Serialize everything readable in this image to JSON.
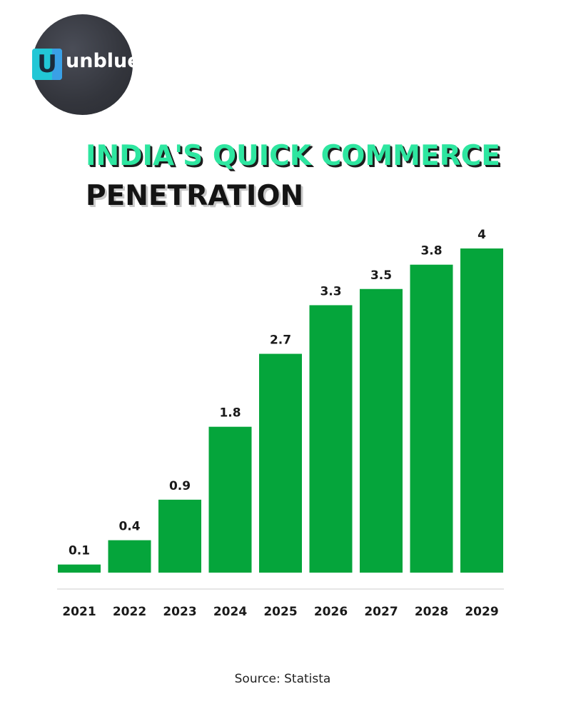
{
  "logo": {
    "mark_letter": "U",
    "text": "unblue"
  },
  "chart_data": {
    "type": "bar",
    "title_line1": "INDIA'S QUICK COMMERCE",
    "title_line2": "PENETRATION",
    "categories": [
      "2021",
      "2022",
      "2023",
      "2024",
      "2025",
      "2026",
      "2027",
      "2028",
      "2029"
    ],
    "values": [
      0.1,
      0.4,
      0.9,
      1.8,
      2.7,
      3.3,
      3.5,
      3.8,
      4
    ],
    "value_labels": [
      "0.1",
      "0.4",
      "0.9",
      "1.8",
      "2.7",
      "3.3",
      "3.5",
      "3.8",
      "4"
    ],
    "bar_color": "#05a53b",
    "xlabel": "",
    "ylabel": "",
    "grid": false
  },
  "source": "Source: Statista"
}
